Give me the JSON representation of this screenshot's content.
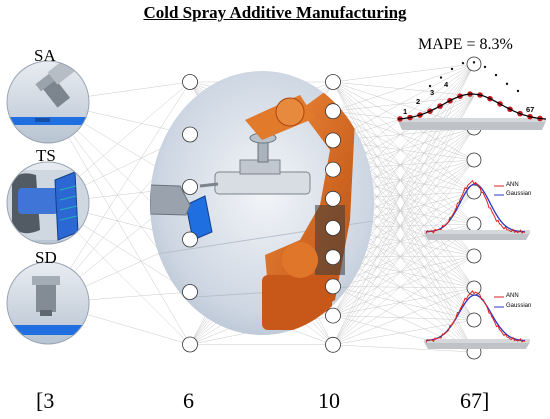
{
  "title": "Cold Spray Additive Manufacturing",
  "inputs": [
    {
      "label": "SA"
    },
    {
      "label": "TS"
    },
    {
      "label": "SD"
    }
  ],
  "layers": [
    "[3",
    "6",
    "10",
    "67]"
  ],
  "metric": "MAPE = 8.3%",
  "profile_labels": [
    "1",
    "2",
    "3",
    "4",
    "67"
  ],
  "distribution_legend": {
    "line1": "ANN",
    "line2": "Gaussian"
  },
  "colors": {
    "ann": "#e0221c",
    "gaussian": "#2a36c9",
    "substrate_blue": "#1f6fe0",
    "robot_orange": "#d9641e"
  }
}
